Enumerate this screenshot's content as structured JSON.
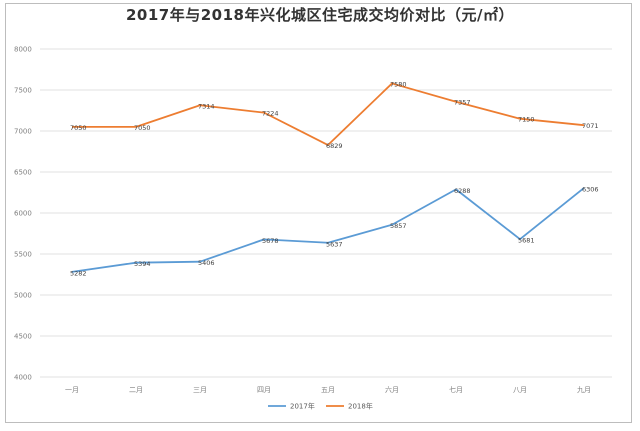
{
  "chart_data": {
    "type": "line",
    "title": "2017年与2018年兴化城区住宅成交均价对比（元/㎡）",
    "categories": [
      "一月",
      "二月",
      "三月",
      "四月",
      "五月",
      "六月",
      "七月",
      "八月",
      "九月"
    ],
    "ylim": [
      4000,
      8000
    ],
    "yticks": [
      4000,
      4500,
      5000,
      5500,
      6000,
      6500,
      7000,
      7500,
      8000
    ],
    "grid": true,
    "legend_position": "bottom",
    "series": [
      {
        "name": "2017年",
        "color": "#5b9bd5",
        "values": [
          5282,
          5394,
          5406,
          5678,
          5637,
          5857,
          6288,
          5681,
          6306
        ],
        "labels": [
          "5282",
          "5394",
          "5406",
          "5678",
          "5637",
          "5857",
          "6288",
          "5681",
          "6306"
        ]
      },
      {
        "name": "2018年",
        "color": "#ed7d31",
        "values": [
          7050,
          7050,
          7314,
          7224,
          6829,
          7580,
          7357,
          7150,
          7071
        ],
        "labels": [
          "7050",
          "7050",
          "7314",
          "7224",
          "6829",
          "7580",
          "7357",
          "7150",
          "7071"
        ]
      }
    ]
  }
}
